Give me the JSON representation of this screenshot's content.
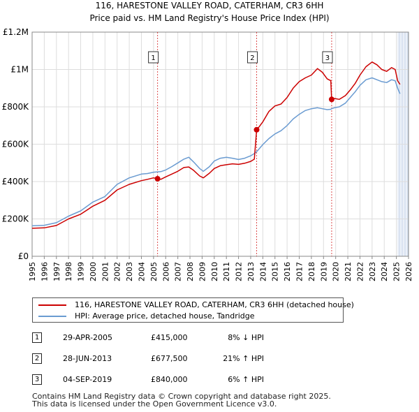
{
  "chart_data": {
    "type": "line",
    "title": "116, HARESTONE VALLEY ROAD, CATERHAM, CR3 6HH",
    "subtitle": "Price paid vs. HM Land Registry's House Price Index (HPI)",
    "x_tick_labels": [
      "1995",
      "1996",
      "1997",
      "1998",
      "1999",
      "2000",
      "2001",
      "2002",
      "2003",
      "2004",
      "2005",
      "2006",
      "2007",
      "2008",
      "2009",
      "2010",
      "2011",
      "2012",
      "2013",
      "2014",
      "2015",
      "2016",
      "2017",
      "2018",
      "2019",
      "2020",
      "2021",
      "2022",
      "2023",
      "2024",
      "2025",
      "2026"
    ],
    "y_tick_labels": [
      "£0",
      "£200K",
      "£400K",
      "£600K",
      "£800K",
      "£1M",
      "£1.2M"
    ],
    "y_tick_values": [
      0,
      200000,
      400000,
      600000,
      800000,
      1000000,
      1200000
    ],
    "xlim": [
      1995,
      2026
    ],
    "ylim": [
      0,
      1200000
    ],
    "grid": true,
    "forecast_start": 2025.08,
    "colors": {
      "price": "#cc0000",
      "hpi": "#6a9bd1",
      "marker": "#cc0000",
      "shade": "#dde6f4",
      "grid": "#dddddd",
      "axis": "#888888"
    },
    "series": [
      {
        "name": "116, HARESTONE VALLEY ROAD, CATERHAM, CR3 6HH (detached house)",
        "color": "#cc0000",
        "points": [
          [
            1995.0,
            150000
          ],
          [
            1996.0,
            152000
          ],
          [
            1997.0,
            165000
          ],
          [
            1998.0,
            200000
          ],
          [
            1999.0,
            225000
          ],
          [
            2000.0,
            268000
          ],
          [
            2001.0,
            300000
          ],
          [
            2002.0,
            355000
          ],
          [
            2003.0,
            385000
          ],
          [
            2004.0,
            405000
          ],
          [
            2004.5,
            412000
          ],
          [
            2005.0,
            420000
          ],
          [
            2005.33,
            415000
          ],
          [
            2005.6,
            412000
          ],
          [
            2006.0,
            425000
          ],
          [
            2006.5,
            440000
          ],
          [
            2007.0,
            455000
          ],
          [
            2007.5,
            475000
          ],
          [
            2007.9,
            478000
          ],
          [
            2008.3,
            460000
          ],
          [
            2008.8,
            430000
          ],
          [
            2009.1,
            420000
          ],
          [
            2009.6,
            445000
          ],
          [
            2010.0,
            470000
          ],
          [
            2010.5,
            485000
          ],
          [
            2011.0,
            490000
          ],
          [
            2011.5,
            495000
          ],
          [
            2012.0,
            492000
          ],
          [
            2012.5,
            498000
          ],
          [
            2013.0,
            508000
          ],
          [
            2013.3,
            520000
          ],
          [
            2013.49,
            677500
          ],
          [
            2013.6,
            685000
          ],
          [
            2014.0,
            720000
          ],
          [
            2014.5,
            775000
          ],
          [
            2015.0,
            805000
          ],
          [
            2015.5,
            815000
          ],
          [
            2016.0,
            850000
          ],
          [
            2016.5,
            900000
          ],
          [
            2017.0,
            935000
          ],
          [
            2017.5,
            955000
          ],
          [
            2018.0,
            970000
          ],
          [
            2018.5,
            1005000
          ],
          [
            2018.9,
            985000
          ],
          [
            2019.3,
            950000
          ],
          [
            2019.6,
            940000
          ],
          [
            2019.67,
            840000
          ],
          [
            2019.9,
            845000
          ],
          [
            2020.3,
            840000
          ],
          [
            2020.8,
            860000
          ],
          [
            2021.2,
            890000
          ],
          [
            2021.6,
            925000
          ],
          [
            2022.0,
            970000
          ],
          [
            2022.5,
            1015000
          ],
          [
            2023.0,
            1040000
          ],
          [
            2023.4,
            1025000
          ],
          [
            2023.8,
            1000000
          ],
          [
            2024.2,
            990000
          ],
          [
            2024.6,
            1010000
          ],
          [
            2024.9,
            1000000
          ],
          [
            2025.1,
            940000
          ],
          [
            2025.3,
            920000
          ]
        ]
      },
      {
        "name": "HPI: Average price, detached house, Tandridge",
        "color": "#6a9bd1",
        "points": [
          [
            1995.0,
            163000
          ],
          [
            1996.0,
            166000
          ],
          [
            1997.0,
            180000
          ],
          [
            1998.0,
            215000
          ],
          [
            1999.0,
            243000
          ],
          [
            2000.0,
            290000
          ],
          [
            2001.0,
            320000
          ],
          [
            2002.0,
            385000
          ],
          [
            2003.0,
            420000
          ],
          [
            2004.0,
            440000
          ],
          [
            2004.5,
            443000
          ],
          [
            2005.0,
            450000
          ],
          [
            2005.33,
            452000
          ],
          [
            2005.6,
            453000
          ],
          [
            2006.0,
            462000
          ],
          [
            2006.5,
            480000
          ],
          [
            2007.0,
            500000
          ],
          [
            2007.5,
            520000
          ],
          [
            2007.9,
            530000
          ],
          [
            2008.3,
            505000
          ],
          [
            2008.8,
            470000
          ],
          [
            2009.1,
            455000
          ],
          [
            2009.6,
            480000
          ],
          [
            2010.0,
            510000
          ],
          [
            2010.5,
            525000
          ],
          [
            2011.0,
            530000
          ],
          [
            2011.5,
            525000
          ],
          [
            2012.0,
            518000
          ],
          [
            2012.5,
            525000
          ],
          [
            2013.0,
            538000
          ],
          [
            2013.3,
            550000
          ],
          [
            2013.49,
            560000
          ],
          [
            2013.6,
            568000
          ],
          [
            2014.0,
            598000
          ],
          [
            2014.5,
            630000
          ],
          [
            2015.0,
            655000
          ],
          [
            2015.5,
            672000
          ],
          [
            2016.0,
            700000
          ],
          [
            2016.5,
            735000
          ],
          [
            2017.0,
            760000
          ],
          [
            2017.5,
            780000
          ],
          [
            2018.0,
            790000
          ],
          [
            2018.5,
            795000
          ],
          [
            2018.9,
            790000
          ],
          [
            2019.3,
            785000
          ],
          [
            2019.6,
            787000
          ],
          [
            2019.67,
            790000
          ],
          [
            2019.9,
            795000
          ],
          [
            2020.3,
            800000
          ],
          [
            2020.8,
            820000
          ],
          [
            2021.2,
            850000
          ],
          [
            2021.6,
            880000
          ],
          [
            2022.0,
            915000
          ],
          [
            2022.5,
            945000
          ],
          [
            2023.0,
            955000
          ],
          [
            2023.4,
            945000
          ],
          [
            2023.8,
            935000
          ],
          [
            2024.2,
            930000
          ],
          [
            2024.6,
            945000
          ],
          [
            2024.9,
            940000
          ],
          [
            2025.1,
            900000
          ],
          [
            2025.3,
            870000
          ]
        ]
      }
    ],
    "sales": [
      {
        "label": "1",
        "x": 2005.33,
        "y": 415000
      },
      {
        "label": "2",
        "x": 2013.49,
        "y": 677500
      },
      {
        "label": "3",
        "x": 2019.67,
        "y": 840000
      }
    ]
  },
  "legend": {
    "price_label": "116, HARESTONE VALLEY ROAD, CATERHAM, CR3 6HH (detached house)",
    "hpi_label": "HPI: Average price, detached house, Tandridge"
  },
  "sales_table": [
    {
      "num": "1",
      "date": "29-APR-2005",
      "price": "£415,000",
      "hpi": "8% ↓ HPI"
    },
    {
      "num": "2",
      "date": "28-JUN-2013",
      "price": "£677,500",
      "hpi": "21% ↑ HPI"
    },
    {
      "num": "3",
      "date": "04-SEP-2019",
      "price": "£840,000",
      "hpi": "6% ↑ HPI"
    }
  ],
  "footer": {
    "line1": "Contains HM Land Registry data © Crown copyright and database right 2025.",
    "line2": "This data is licensed under the Open Government Licence v3.0."
  }
}
